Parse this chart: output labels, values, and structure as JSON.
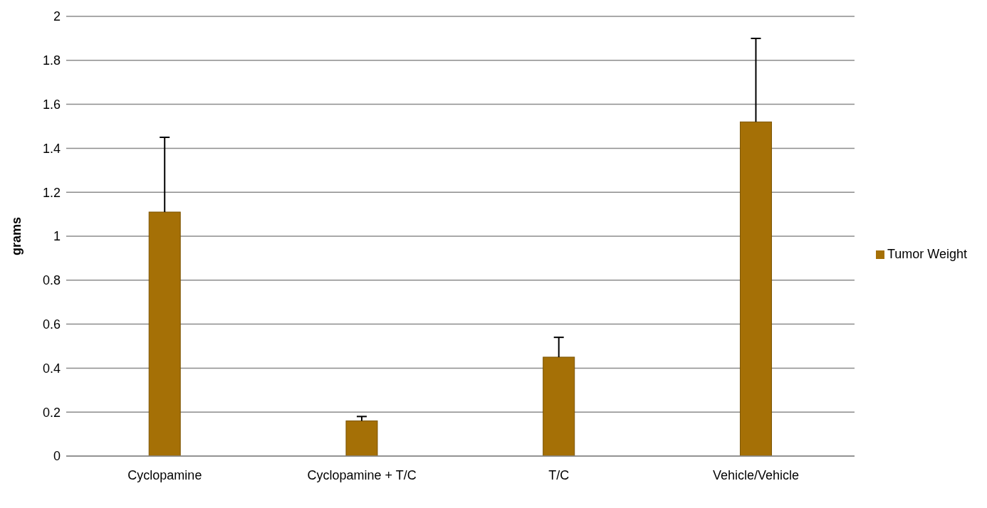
{
  "chart_data": {
    "type": "bar",
    "ylabel": "grams",
    "categories": [
      "Cyclopamine",
      "Cyclopamine + T/C",
      "T/C",
      "Vehicle/Vehicle"
    ],
    "series": [
      {
        "name": "Tumor Weight",
        "color": "#a57006",
        "values": [
          1.11,
          0.16,
          0.45,
          1.52
        ],
        "errors": [
          [
            1.11,
            1.45
          ],
          [
            0.16,
            0.18
          ],
          [
            0.45,
            0.54
          ],
          [
            1.52,
            1.9
          ]
        ]
      }
    ],
    "ylim": [
      0,
      2
    ],
    "yticks": [
      0,
      0.2,
      0.4,
      0.6,
      0.8,
      1,
      1.2,
      1.4,
      1.6,
      1.8,
      2
    ],
    "grid": "y",
    "legend": "right"
  }
}
